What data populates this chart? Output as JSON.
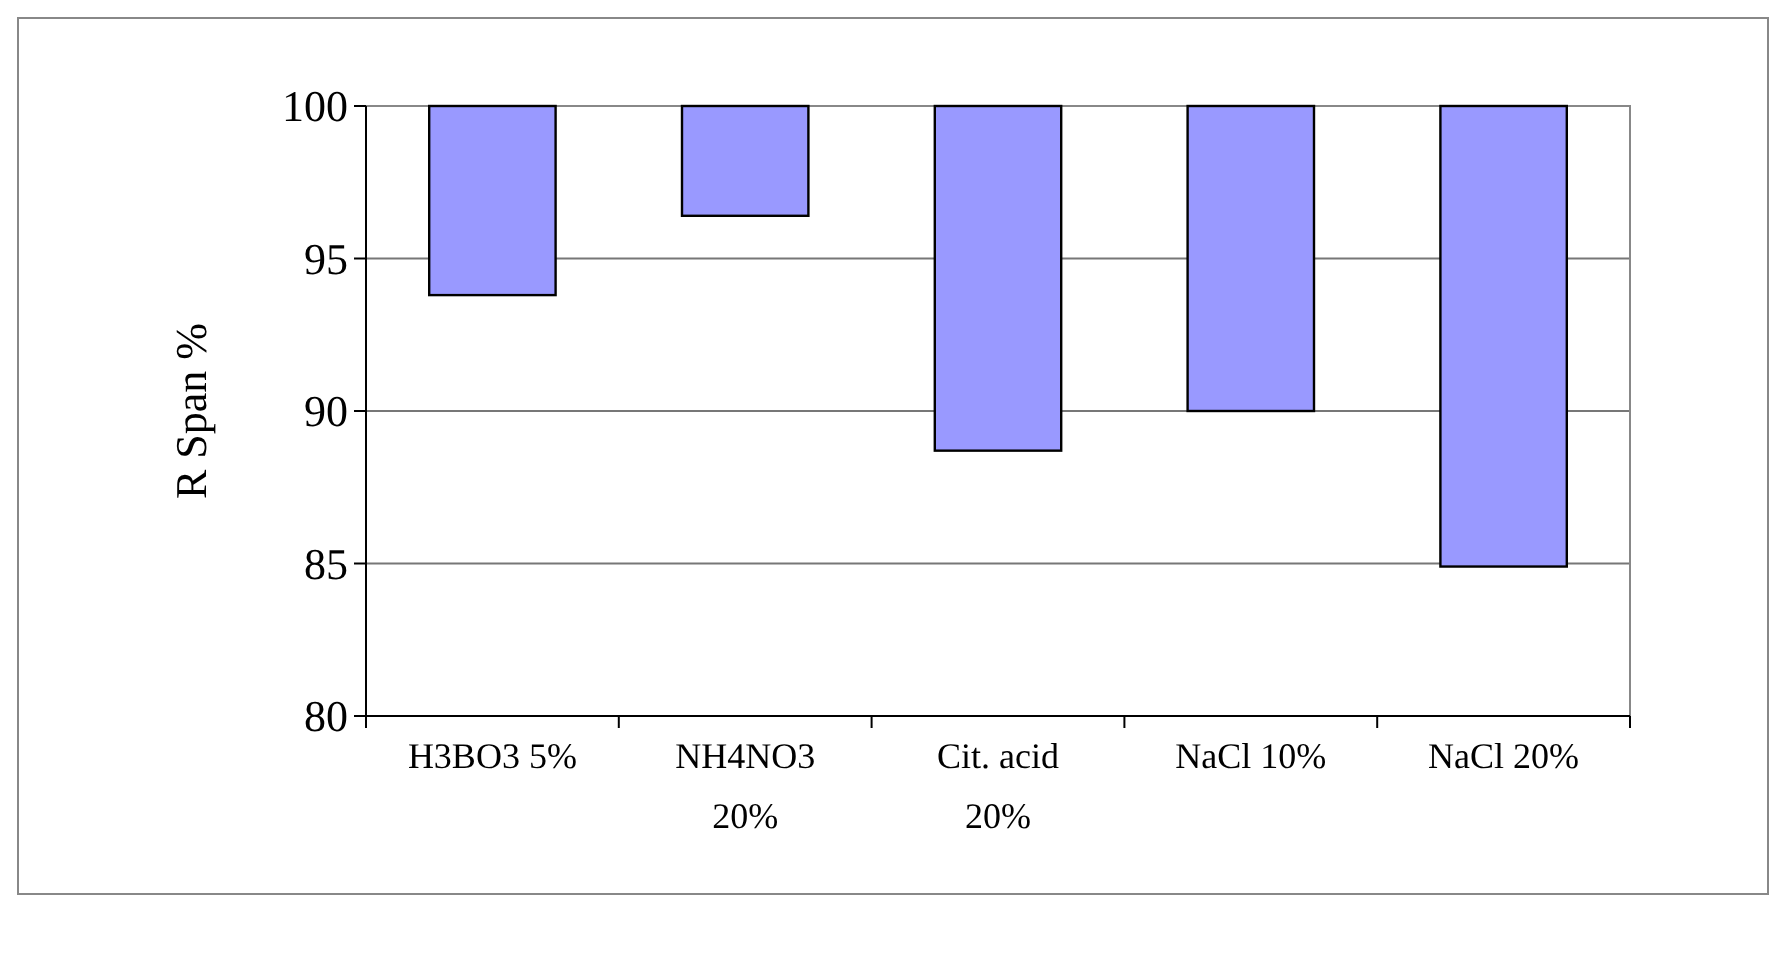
{
  "chart_data": {
    "type": "bar",
    "ylabel": "R Span %",
    "categories": [
      "H3BO3 5%",
      "NH4NO3 20%",
      "Cit. acid 20%",
      "NaCl 10%",
      "NaCl 20%"
    ],
    "base": [
      100,
      100,
      100,
      100,
      100
    ],
    "values": [
      -6.2,
      -3.6,
      -11.3,
      -10.0,
      -15.1
    ],
    "color": "#9999ff",
    "ylim": [
      80,
      100
    ],
    "yticks": [
      80,
      85,
      90,
      95,
      100
    ],
    "grid": "y"
  }
}
